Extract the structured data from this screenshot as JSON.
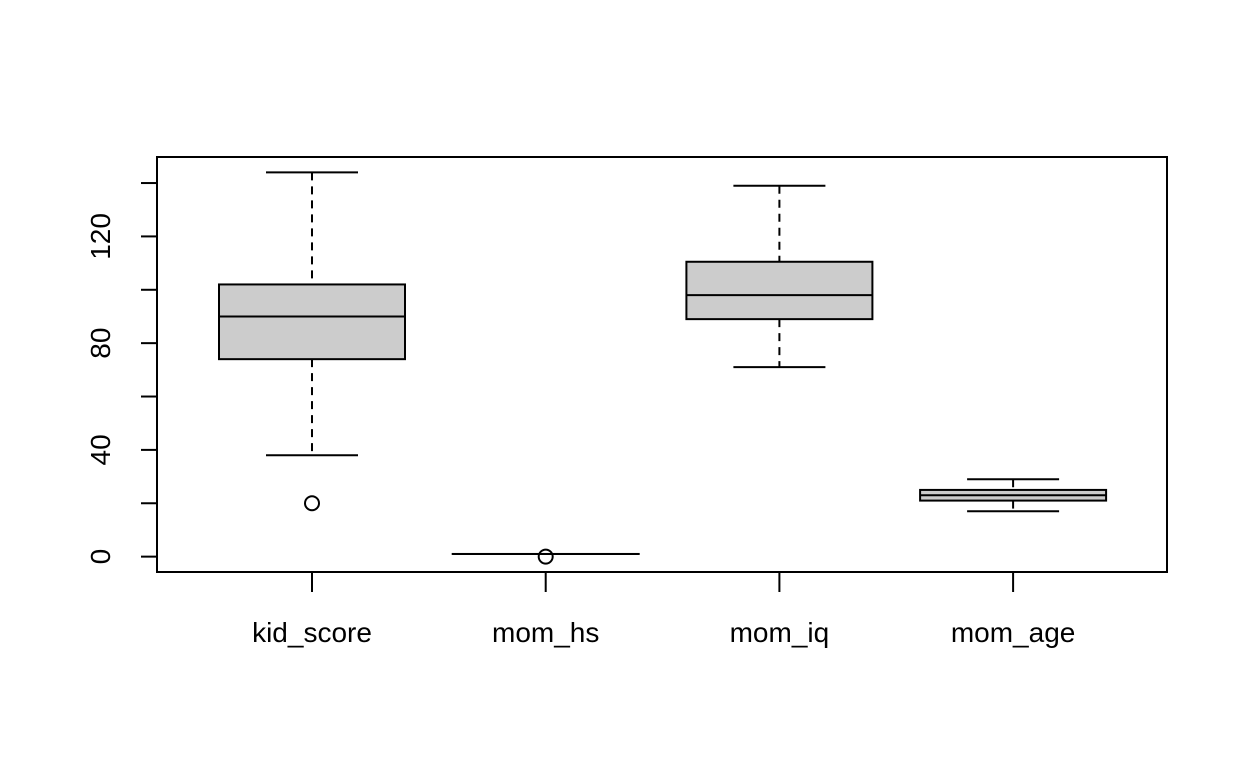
{
  "chart_data": {
    "type": "boxplot",
    "categories": [
      "kid_score",
      "mom_hs",
      "mom_iq",
      "mom_age"
    ],
    "boxes": [
      {
        "min": 38,
        "q1": 74,
        "median": 90,
        "q3": 102,
        "max": 144,
        "outliers": [
          20
        ]
      },
      {
        "min": 1,
        "q1": 1,
        "median": 1,
        "q3": 1,
        "max": 1,
        "outliers": [
          0
        ]
      },
      {
        "min": 71,
        "q1": 89,
        "median": 98,
        "q3": 110.5,
        "max": 139,
        "outliers": []
      },
      {
        "min": 17,
        "q1": 21,
        "median": 23,
        "q3": 25,
        "max": 29,
        "outliers": []
      }
    ],
    "color": "#cccccc",
    "ylim": [
      -5.76,
      149.76
    ],
    "yticks": [
      0,
      40,
      80,
      120
    ],
    "yminorticks": [
      20,
      60,
      100,
      140
    ]
  }
}
